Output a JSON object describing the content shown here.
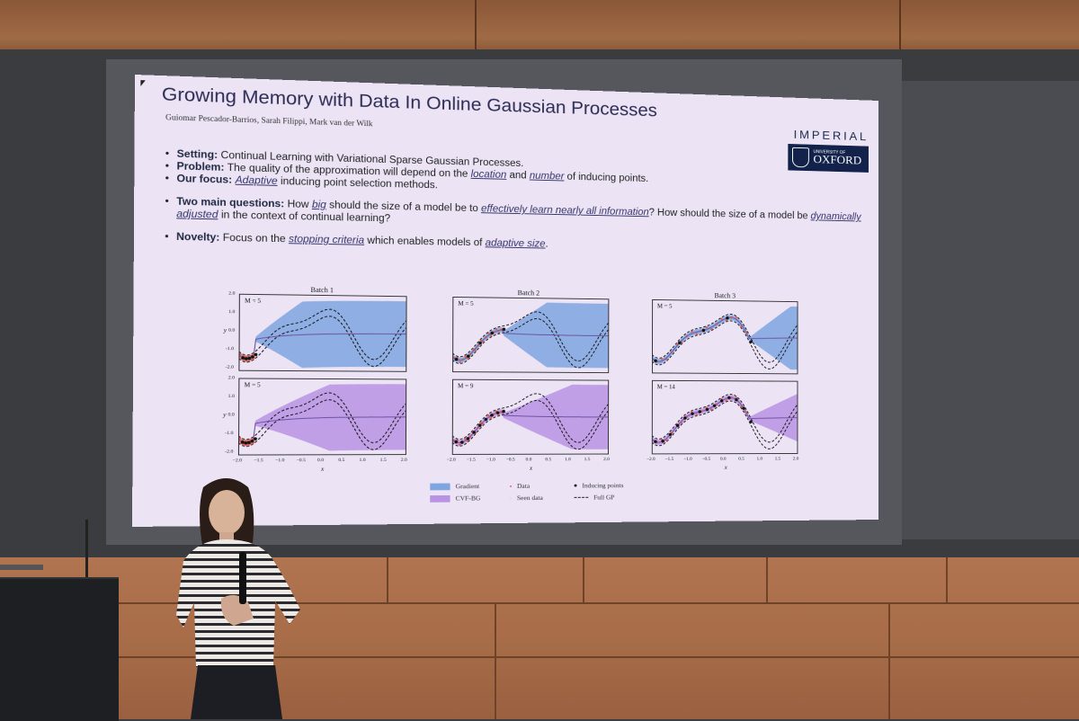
{
  "slide": {
    "title": "Growing Memory with Data In Online Gaussian Processes",
    "authors": "Guiomar Pescador-Barrios, Sarah Filippi, Mark van der Wilk",
    "logos": {
      "imperial": "IMPERIAL",
      "oxford_small": "UNIVERSITY OF",
      "oxford_big": "OXFORD"
    },
    "bullets": {
      "setting_label": "Setting:",
      "setting_text": "Continual Learning with Variational Sparse Gaussian Processes.",
      "problem_label": "Problem:",
      "problem_a": "The quality of the approximation will depend on the",
      "problem_location": "location",
      "problem_and": "and",
      "problem_number": "number",
      "problem_b": "of inducing points.",
      "focus_label": "Our focus:",
      "focus_adaptive": "Adaptive",
      "focus_text": "inducing point selection methods.",
      "questions_label": "Two main questions:",
      "questions_a": "How",
      "questions_big": "big",
      "questions_b": "should the size of a model be to",
      "questions_effectively": "effectively learn nearly all information",
      "questions_c": "? How should the size of a model be",
      "questions_dynamically": "dynamically adjusted",
      "questions_d": "in the context of continual learning?",
      "novelty_label": "Novelty:",
      "novelty_a": "Focus on the",
      "novelty_stopping": "stopping criteria",
      "novelty_b": "which enables models of",
      "novelty_adaptive": "adaptive size",
      "novelty_end": "."
    },
    "figure": {
      "batches": [
        {
          "title": "Batch 1",
          "top_m": "M = 5",
          "bottom_m": "M = 5"
        },
        {
          "title": "Batch 2",
          "top_m": "M = 5",
          "bottom_m": "M = 9"
        },
        {
          "title": "Batch 3",
          "top_m": "M = 5",
          "bottom_m": "M = 14"
        }
      ],
      "y_ticks": [
        "2.0",
        "1.0",
        "0.0",
        "-1.0",
        "-2.0"
      ],
      "y_label": "y",
      "x_ticks": [
        "−2.0",
        "−1.5",
        "−1.0",
        "−0.5",
        "0.0",
        "0.5",
        "1.0",
        "1.5",
        "2.0"
      ],
      "x_label": "x",
      "legend": {
        "gradient": "Gradient",
        "cvf": "CVF-BG",
        "data": "Data",
        "seen": "Seen data",
        "inducing": "Inducing points",
        "full_gp": "Full GP"
      },
      "colors": {
        "gradient": "#7fa6e0",
        "cvf": "#b993e3",
        "data": "#e0503a",
        "mean": "#6a4fa0"
      }
    }
  }
}
